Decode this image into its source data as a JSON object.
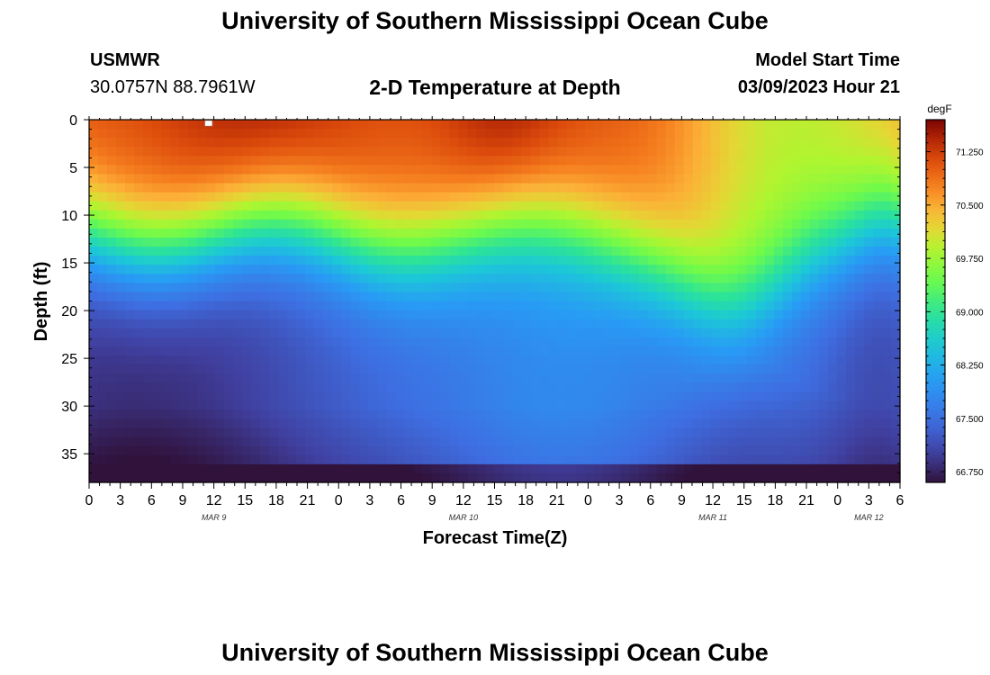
{
  "page": {
    "title": "University of Southern Mississippi Ocean Cube",
    "bottom_title": "University of Southern Mississippi Ocean Cube",
    "station": "USMWR",
    "location": "30.0757N  88.7961W",
    "start_label": "Model Start Time",
    "start_value": "03/09/2023 Hour 21"
  },
  "chart_data": {
    "type": "heatmap",
    "title": "2-D Temperature at Depth",
    "xlabel": "Forecast Time(Z)",
    "ylabel": "Depth (ft)",
    "x_range_hours": [
      0,
      78
    ],
    "x_ticks": [
      "0",
      "3",
      "6",
      "9",
      "12",
      "15",
      "18",
      "21",
      "0",
      "3",
      "6",
      "9",
      "12",
      "15",
      "18",
      "21",
      "0",
      "3",
      "6",
      "9",
      "12",
      "15",
      "18",
      "21",
      "0",
      "3",
      "6"
    ],
    "x_dates": [
      {
        "label": "MAR 9",
        "hour": 12
      },
      {
        "label": "MAR 10",
        "hour": 36
      },
      {
        "label": "MAR 11",
        "hour": 60
      },
      {
        "label": "MAR 12",
        "hour": 75
      }
    ],
    "y_range_ft": [
      0,
      38
    ],
    "y_ticks": [
      0,
      5,
      10,
      15,
      20,
      25,
      30,
      35
    ],
    "colorbar": {
      "unit": "degF",
      "min": 66.6,
      "max": 71.7,
      "tick_values": [
        71.25,
        70.5,
        69.75,
        69.0,
        68.25,
        67.5,
        66.75
      ],
      "tick_labels": [
        "71.250",
        "70.500",
        "69.750",
        "69.000",
        "68.250",
        "67.500",
        "66.750"
      ]
    },
    "surface_marker": {
      "hour": 11.5,
      "depth_ft": 0
    }
  }
}
